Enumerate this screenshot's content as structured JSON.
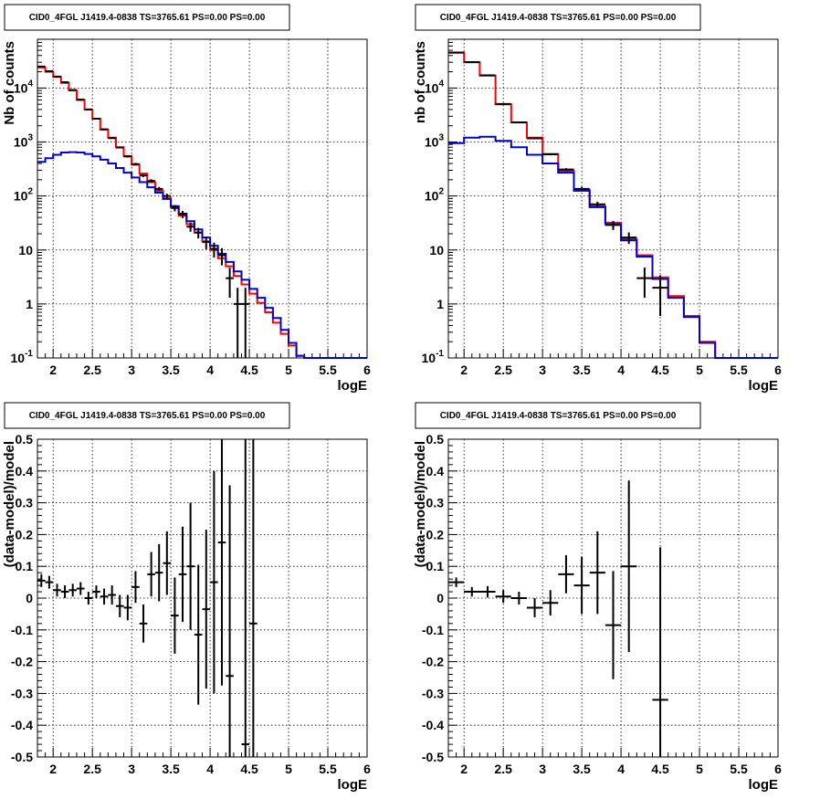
{
  "colors": {
    "model_total": "#ff0000",
    "model_component": "#0000cc",
    "data": "#000000"
  },
  "chart_data": [
    {
      "type": "line",
      "panel": "top-left",
      "title": "CID0_4FGL J1419.4-0838 TS=3765.61 PS=0.00 PS=0.00",
      "xlabel": "logE",
      "ylabel": "Nb of counts",
      "xlim": [
        1.8,
        6.0
      ],
      "ylim": [
        0.1,
        80000
      ],
      "yscale": "log",
      "grid": true,
      "xticks": [
        "2",
        "2.5",
        "3",
        "3.5",
        "4",
        "4.5",
        "5",
        "5.5",
        "6"
      ],
      "yticks": [
        "10^-1",
        "1",
        "10",
        "10^2",
        "10^3",
        "10^4"
      ],
      "bin_edges": [
        1.8,
        1.9,
        2.0,
        2.1,
        2.2,
        2.3,
        2.4,
        2.5,
        2.6,
        2.7,
        2.8,
        2.9,
        3.0,
        3.1,
        3.2,
        3.3,
        3.4,
        3.5,
        3.6,
        3.7,
        3.8,
        3.9,
        4.0,
        4.1,
        4.2,
        4.3,
        4.4,
        4.5,
        4.6,
        4.7,
        4.8,
        4.9,
        5.0,
        5.1,
        5.2,
        5.3,
        5.4,
        5.5,
        5.6,
        5.7,
        5.8,
        5.9,
        6.0
      ],
      "series": [
        {
          "role": "total",
          "values": [
            24000,
            20000,
            16000,
            12500,
            9000,
            6000,
            4000,
            2700,
            1700,
            1200,
            800,
            550,
            380,
            260,
            180,
            125,
            90,
            62,
            43,
            30,
            21,
            14.5,
            10,
            7,
            5,
            3.3,
            2.3,
            1.55,
            1.05,
            0.7,
            0.45,
            0.28,
            0.17,
            0.11,
            0.1,
            0.1,
            0.1,
            0.1,
            0.1,
            0.1,
            0.1,
            0.1
          ]
        },
        {
          "role": "component",
          "values": [
            430,
            500,
            580,
            640,
            650,
            640,
            600,
            540,
            470,
            400,
            330,
            270,
            220,
            180,
            145,
            115,
            88,
            65,
            47,
            34,
            24,
            17,
            12,
            8.5,
            6,
            4,
            2.8,
            1.9,
            1.3,
            0.85,
            0.55,
            0.33,
            0.19,
            0.11,
            0.1,
            0.1,
            0.1,
            0.1,
            0.1,
            0.1,
            0.1,
            0.1
          ]
        }
      ],
      "points": [
        {
          "x": 1.85,
          "y": 25000,
          "yerr": 160
        },
        {
          "x": 1.95,
          "y": 20500,
          "yerr": 140
        },
        {
          "x": 2.05,
          "y": 16300,
          "yerr": 130
        },
        {
          "x": 2.15,
          "y": 12800,
          "yerr": 110
        },
        {
          "x": 2.25,
          "y": 9200,
          "yerr": 96
        },
        {
          "x": 2.35,
          "y": 6100,
          "yerr": 78
        },
        {
          "x": 2.45,
          "y": 4000,
          "yerr": 63
        },
        {
          "x": 2.55,
          "y": 2700,
          "yerr": 52
        },
        {
          "x": 2.65,
          "y": 1720,
          "yerr": 41
        },
        {
          "x": 2.75,
          "y": 1180,
          "yerr": 34
        },
        {
          "x": 2.85,
          "y": 790,
          "yerr": 28
        },
        {
          "x": 2.95,
          "y": 540,
          "yerr": 23
        },
        {
          "x": 3.05,
          "y": 390,
          "yerr": 20
        },
        {
          "x": 3.15,
          "y": 240,
          "yerr": 15
        },
        {
          "x": 3.25,
          "y": 190,
          "yerr": 14
        },
        {
          "x": 3.35,
          "y": 135,
          "yerr": 12
        },
        {
          "x": 3.45,
          "y": 100,
          "yerr": 10
        },
        {
          "x": 3.55,
          "y": 60,
          "yerr": 8
        },
        {
          "x": 3.65,
          "y": 46,
          "yerr": 7
        },
        {
          "x": 3.75,
          "y": 27,
          "yerr": 5.2
        },
        {
          "x": 3.85,
          "y": 21,
          "yerr": 4.6
        },
        {
          "x": 3.95,
          "y": 14,
          "yerr": 3.7
        },
        {
          "x": 4.05,
          "y": 10.5,
          "yerr": 3.2
        },
        {
          "x": 4.15,
          "y": 8,
          "yerr": 2.8
        },
        {
          "x": 4.25,
          "y": 3,
          "yerr": 1.7
        },
        {
          "x": 4.35,
          "y": 1.0,
          "yerr": 0.99
        },
        {
          "x": 4.45,
          "y": 1.0,
          "yerr": 0.99
        }
      ]
    },
    {
      "type": "line",
      "panel": "top-right",
      "title": "CID0_4FGL J1419.4-0838 TS=3765.61 PS=0.00 PS=0.00",
      "xlabel": "logE",
      "ylabel": "nb of counts",
      "xlim": [
        1.8,
        6.0
      ],
      "ylim": [
        0.1,
        80000
      ],
      "yscale": "log",
      "grid": true,
      "xticks": [
        "2",
        "2.5",
        "3",
        "3.5",
        "4",
        "4.5",
        "5",
        "5.5",
        "6"
      ],
      "yticks": [
        "10^-1",
        "1",
        "10",
        "10^2",
        "10^3",
        "10^4"
      ],
      "bin_edges": [
        1.8,
        2.0,
        2.2,
        2.4,
        2.6,
        2.8,
        3.0,
        3.2,
        3.4,
        3.6,
        3.8,
        4.0,
        4.2,
        4.4,
        4.6,
        4.8,
        5.0,
        5.2,
        5.4,
        5.6,
        5.8,
        6.0
      ],
      "series": [
        {
          "role": "total",
          "values": [
            45000,
            30000,
            17000,
            5000,
            2300,
            1200,
            600,
            290,
            130,
            65,
            32,
            16,
            8,
            3.1,
            1.4,
            0.6,
            0.2,
            0.1,
            0.1,
            0.1,
            0.1
          ]
        },
        {
          "role": "component",
          "values": [
            950,
            1200,
            1250,
            1050,
            800,
            580,
            400,
            270,
            125,
            62,
            30,
            15,
            7.5,
            2.9,
            1.3,
            0.57,
            0.19,
            0.1,
            0.1,
            0.1,
            0.1
          ]
        }
      ],
      "points": [
        {
          "x": 1.9,
          "y": 45500,
          "yerr": 210
        },
        {
          "x": 2.1,
          "y": 30200,
          "yerr": 175
        },
        {
          "x": 2.3,
          "y": 17200,
          "yerr": 130
        },
        {
          "x": 2.5,
          "y": 5050,
          "yerr": 71
        },
        {
          "x": 2.7,
          "y": 2310,
          "yerr": 48
        },
        {
          "x": 2.9,
          "y": 1170,
          "yerr": 34
        },
        {
          "x": 3.1,
          "y": 590,
          "yerr": 24
        },
        {
          "x": 3.3,
          "y": 310,
          "yerr": 18
        },
        {
          "x": 3.5,
          "y": 135,
          "yerr": 12
        },
        {
          "x": 3.7,
          "y": 70,
          "yerr": 8.5
        },
        {
          "x": 3.9,
          "y": 29,
          "yerr": 5.5
        },
        {
          "x": 4.1,
          "y": 17,
          "yerr": 4.1
        },
        {
          "x": 4.3,
          "y": 3,
          "yerr": 1.7
        },
        {
          "x": 4.5,
          "y": 2,
          "yerr": 1.4
        }
      ]
    },
    {
      "type": "scatter",
      "panel": "bottom-left",
      "title": "CID0_4FGL J1419.4-0838 TS=3765.61 PS=0.00 PS=0.00",
      "xlabel": "logE",
      "ylabel": "(data-model)/model",
      "xlim": [
        1.8,
        6.0
      ],
      "ylim": [
        -0.5,
        0.5
      ],
      "grid": true,
      "xticks": [
        "2",
        "2.5",
        "3",
        "3.5",
        "4",
        "4.5",
        "5",
        "5.5",
        "6"
      ],
      "yticks": [
        "-0.5",
        "-0.4",
        "-0.3",
        "-0.2",
        "-0.1",
        "0",
        "0.1",
        "0.2",
        "0.3",
        "0.4",
        "0.5"
      ],
      "xhalfwidth": 0.05,
      "points": [
        {
          "x": 1.85,
          "y": 0.055,
          "yerr": 0.02
        },
        {
          "x": 1.95,
          "y": 0.05,
          "yerr": 0.02
        },
        {
          "x": 2.05,
          "y": 0.025,
          "yerr": 0.02
        },
        {
          "x": 2.15,
          "y": 0.02,
          "yerr": 0.02
        },
        {
          "x": 2.25,
          "y": 0.025,
          "yerr": 0.02
        },
        {
          "x": 2.35,
          "y": 0.03,
          "yerr": 0.02
        },
        {
          "x": 2.45,
          "y": 0.0,
          "yerr": 0.02
        },
        {
          "x": 2.55,
          "y": 0.02,
          "yerr": 0.02
        },
        {
          "x": 2.65,
          "y": 0.005,
          "yerr": 0.025
        },
        {
          "x": 2.75,
          "y": 0.01,
          "yerr": 0.03
        },
        {
          "x": 2.85,
          "y": -0.025,
          "yerr": 0.035
        },
        {
          "x": 2.95,
          "y": -0.03,
          "yerr": 0.04
        },
        {
          "x": 3.05,
          "y": 0.035,
          "yerr": 0.05
        },
        {
          "x": 3.15,
          "y": -0.08,
          "yerr": 0.06
        },
        {
          "x": 3.25,
          "y": 0.075,
          "yerr": 0.07
        },
        {
          "x": 3.35,
          "y": 0.08,
          "yerr": 0.09
        },
        {
          "x": 3.45,
          "y": 0.11,
          "yerr": 0.1
        },
        {
          "x": 3.55,
          "y": -0.055,
          "yerr": 0.12
        },
        {
          "x": 3.65,
          "y": 0.075,
          "yerr": 0.15
        },
        {
          "x": 3.75,
          "y": 0.1,
          "yerr": 0.2
        },
        {
          "x": 3.85,
          "y": -0.115,
          "yerr": 0.22
        },
        {
          "x": 3.95,
          "y": -0.035,
          "yerr": 0.25
        },
        {
          "x": 4.05,
          "y": 0.05,
          "yerr": 0.35
        },
        {
          "x": 4.15,
          "y": 0.175,
          "yerr": 0.45
        },
        {
          "x": 4.25,
          "y": -0.245,
          "yerr": 0.6
        },
        {
          "x": 4.45,
          "y": -0.46,
          "yerr": 1.0
        },
        {
          "x": 4.55,
          "y": -0.08,
          "yerr": 1.0
        }
      ]
    },
    {
      "type": "scatter",
      "panel": "bottom-right",
      "title": "CID0_4FGL J1419.4-0838 TS=3765.61 PS=0.00 PS=0.00",
      "xlabel": "logE",
      "ylabel": "(data-model)/model",
      "xlim": [
        1.8,
        6.0
      ],
      "ylim": [
        -0.5,
        0.5
      ],
      "grid": true,
      "xticks": [
        "2",
        "2.5",
        "3",
        "3.5",
        "4",
        "4.5",
        "5",
        "5.5",
        "6"
      ],
      "yticks": [
        "-0.5",
        "-0.4",
        "-0.3",
        "-0.2",
        "-0.1",
        "0",
        "0.1",
        "0.2",
        "0.3",
        "0.4",
        "0.5"
      ],
      "xhalfwidth": 0.1,
      "points": [
        {
          "x": 1.9,
          "y": 0.05,
          "yerr": 0.015
        },
        {
          "x": 2.1,
          "y": 0.02,
          "yerr": 0.015
        },
        {
          "x": 2.3,
          "y": 0.02,
          "yerr": 0.018
        },
        {
          "x": 2.5,
          "y": 0.005,
          "yerr": 0.02
        },
        {
          "x": 2.7,
          "y": 0.0,
          "yerr": 0.02
        },
        {
          "x": 2.9,
          "y": -0.03,
          "yerr": 0.03
        },
        {
          "x": 3.1,
          "y": -0.015,
          "yerr": 0.04
        },
        {
          "x": 3.3,
          "y": 0.075,
          "yerr": 0.06
        },
        {
          "x": 3.5,
          "y": 0.04,
          "yerr": 0.09
        },
        {
          "x": 3.7,
          "y": 0.08,
          "yerr": 0.13
        },
        {
          "x": 3.9,
          "y": -0.085,
          "yerr": 0.17
        },
        {
          "x": 4.1,
          "y": 0.1,
          "yerr": 0.27
        },
        {
          "x": 4.5,
          "y": -0.32,
          "yerr": 0.48
        }
      ]
    }
  ]
}
